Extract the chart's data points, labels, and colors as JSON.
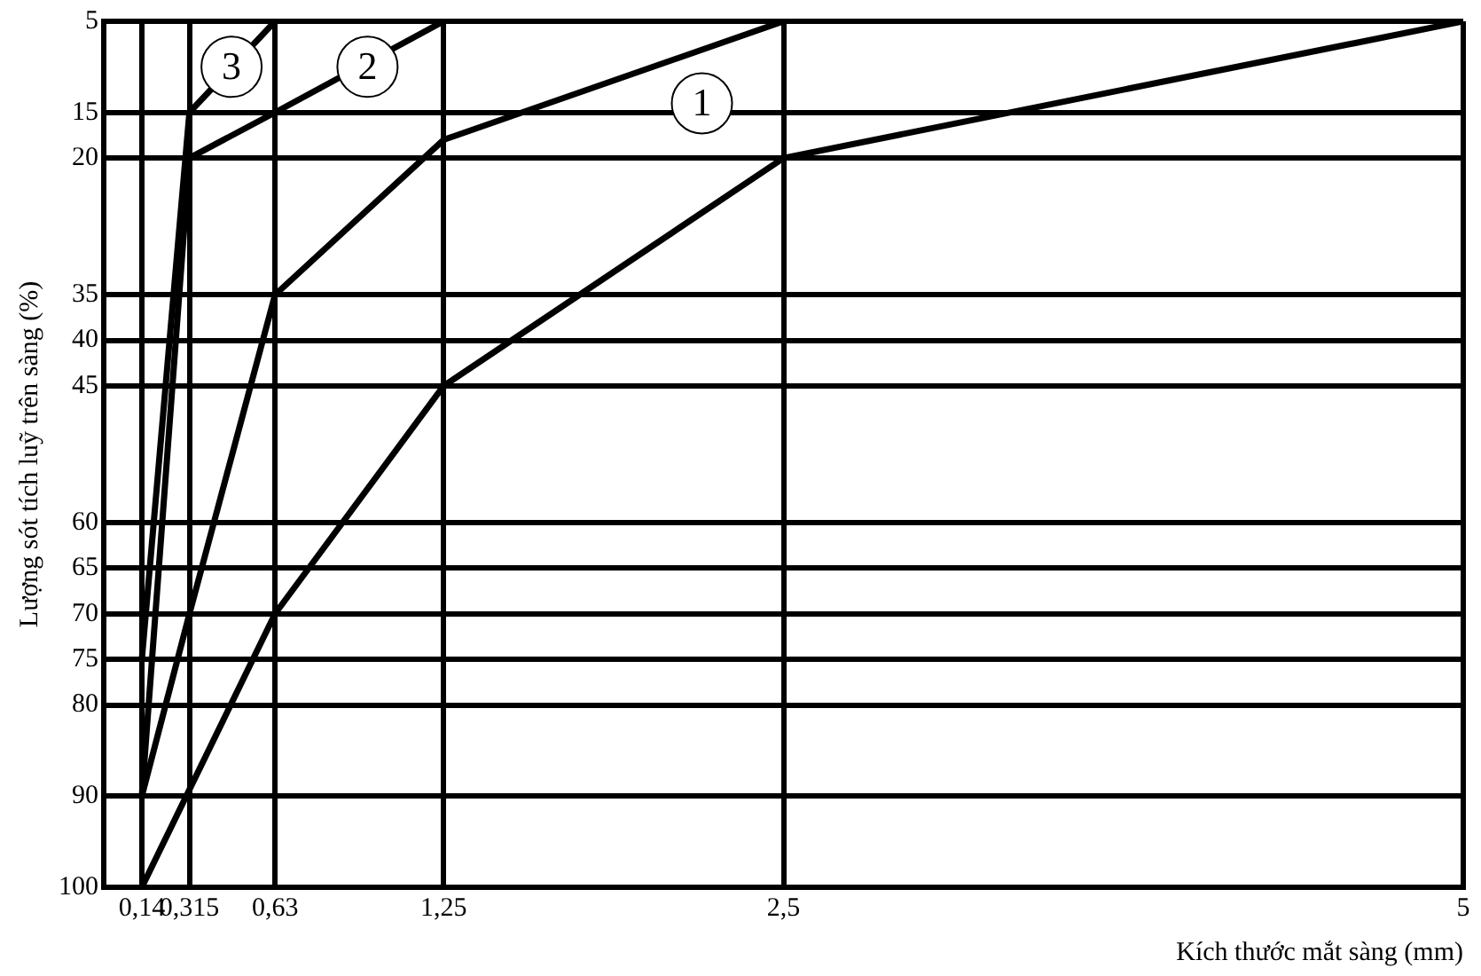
{
  "chart_data": {
    "type": "line",
    "xlabel": "Kích thước mắt sàng (mm)",
    "ylabel": "Lượng sót tích luỹ trên sàng (%)",
    "series": [
      {
        "color": "#000000",
        "x": [
          0.14,
          0.63,
          1.25,
          2.5,
          5
        ],
        "values": [
          100,
          70,
          45,
          20,
          5
        ]
      },
      {
        "color": "#000000",
        "x": [
          0.14,
          0.315,
          0.63,
          1.25,
          2.5
        ],
        "values": [
          90,
          70,
          35,
          18,
          5
        ]
      },
      {
        "color": "#000000",
        "x": [
          0.14,
          0.315,
          0.63,
          1.25
        ],
        "values": [
          90,
          20,
          15,
          5
        ]
      },
      {
        "color": "#000000",
        "x": [
          0.14,
          0.315,
          0.63
        ],
        "values": [
          75,
          15,
          5
        ]
      }
    ],
    "xlim": [
      0,
      5
    ],
    "xticks": [
      {
        "value": 0.14,
        "label": "0,14"
      },
      {
        "value": 0.315,
        "label": "0,315"
      },
      {
        "value": 0.63,
        "label": "0,63"
      },
      {
        "value": 1.25,
        "label": "1,25"
      },
      {
        "value": 2.5,
        "label": "2,5"
      },
      {
        "value": 5,
        "label": "5"
      }
    ],
    "ylim": [
      100,
      5
    ],
    "yticks": [
      5,
      15,
      20,
      35,
      40,
      45,
      60,
      65,
      70,
      75,
      80,
      90,
      100
    ],
    "grid": true,
    "marker": "none",
    "line_style": "solid",
    "legend": false,
    "annotations": [
      {
        "text": "1",
        "x": 2.2,
        "y": 14
      },
      {
        "text": "2",
        "x": 0.97,
        "y": 10
      },
      {
        "text": "3",
        "x": 0.47,
        "y": 10
      }
    ]
  }
}
